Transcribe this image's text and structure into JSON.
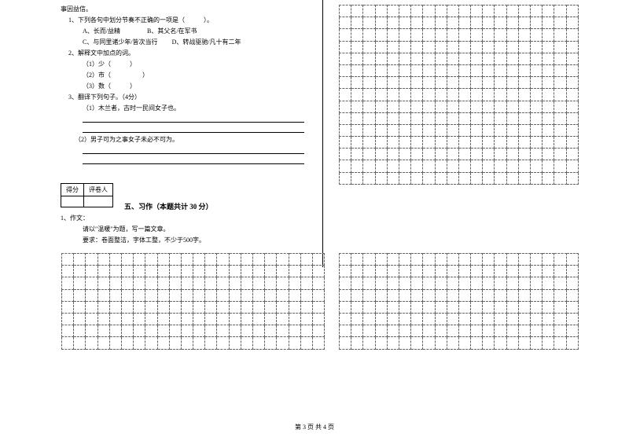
{
  "text": {
    "l0": "事因益信。",
    "l1": "1、下列各句中划分节奏不正确的一项是（　　　）。",
    "l2a": "A、长而/益精",
    "l2b": "B、其父名/在军书",
    "l3a": "C、与同里诸少年/皆次当行",
    "l3b": "D、转战驱驰/凡十有二年",
    "l4": "2、解释文中加点的词。",
    "l5": "（1）少（　　　）",
    "l6": "（2）市（　　　　　）",
    "l7": "（3）数（　　　）",
    "l8": "3、翻译下列句子。（4分）",
    "l9": "（1）木兰者，古时一民间女子也。",
    "l10": "（2）男子可为之事女子未必不可为。",
    "score1": "得分",
    "score2": "评卷人",
    "section": "五、习作（本题共计 30 分）",
    "e1": "1、作文：",
    "e2": "请以\"温暖\"为题，写一篇文章。",
    "e3": "要求：卷面整洁，字体工整，不少于500字。",
    "footer": "第 3 页 共 4 页"
  },
  "grids": {
    "topRight": {
      "rows": 15,
      "cols": 20
    },
    "bottomLeft": {
      "rows": 8,
      "cols": 22
    },
    "bottomRight": {
      "rows": 8,
      "cols": 20
    }
  },
  "colors": {
    "bg": "#ffffff",
    "text": "#000000",
    "grid": "#666666"
  }
}
